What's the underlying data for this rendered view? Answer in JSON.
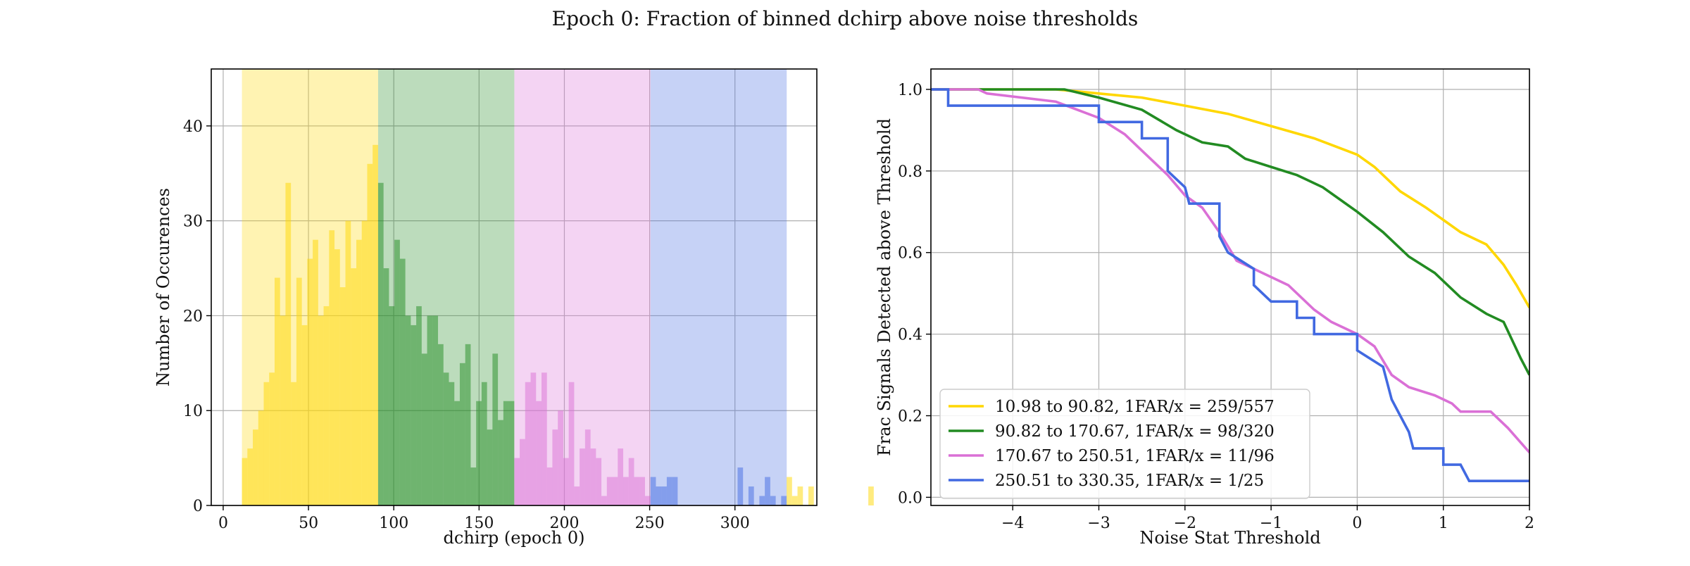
{
  "figure": {
    "title": "Epoch 0: Fraction of binned dchirp above noise thresholds"
  },
  "colors": {
    "yellow": "#FFD700",
    "green": "#228B22",
    "violet": "#DA70D6",
    "blue": "#4169E1",
    "grid": "#b0b0b0"
  },
  "chart_data": [
    {
      "type": "bar",
      "subtype": "histogram",
      "xlabel": "dchirp (epoch 0)",
      "ylabel": "Number of Occurences",
      "xlim": [
        -7,
        348
      ],
      "ylim": [
        0,
        46
      ],
      "xticks": [
        0,
        50,
        100,
        150,
        200,
        250,
        300
      ],
      "yticks": [
        0,
        10,
        20,
        30,
        40
      ],
      "grid": true,
      "shaded_bins": [
        {
          "x0": 10.98,
          "x1": 90.82,
          "color": "yellow"
        },
        {
          "x0": 90.82,
          "x1": 170.67,
          "color": "green"
        },
        {
          "x0": 170.67,
          "x1": 250.51,
          "color": "violet"
        },
        {
          "x0": 250.51,
          "x1": 330.35,
          "color": "blue"
        }
      ],
      "bin_start": 10.98,
      "bin_width": 3.193,
      "counts": [
        5,
        6,
        8,
        10,
        13,
        14,
        24,
        20,
        34,
        13,
        24,
        19,
        26,
        28,
        20,
        21,
        29,
        27,
        23,
        30,
        25,
        28,
        30,
        36,
        38,
        34,
        25,
        21,
        28,
        26,
        20,
        19,
        21,
        16,
        20,
        20,
        17,
        14,
        13,
        11,
        15,
        17,
        4,
        11,
        13,
        8,
        16,
        9,
        11,
        11,
        5,
        7,
        13,
        14,
        11,
        14,
        4,
        8,
        10,
        5,
        13,
        2,
        6,
        8,
        6,
        5,
        1,
        3,
        3,
        6,
        3,
        5,
        3,
        3,
        1,
        3,
        2,
        2,
        3,
        3,
        0,
        0,
        0,
        0,
        0,
        0,
        0,
        0,
        0,
        0,
        0,
        4,
        0,
        2,
        0,
        1,
        3,
        1,
        0,
        1,
        3,
        1,
        2,
        0,
        2,
        0,
        0,
        0,
        0,
        0,
        0,
        0,
        0,
        0,
        0,
        2
      ],
      "series": [
        {
          "name": "",
          "color": "yellow"
        },
        {
          "name": "",
          "color": "green"
        },
        {
          "name": "",
          "color": "violet"
        },
        {
          "name": "",
          "color": "blue"
        }
      ]
    },
    {
      "type": "line",
      "subtype": "step",
      "xlabel": "Noise Stat Threshold",
      "ylabel": "Frac Signals Detected above Threshold",
      "xlim": [
        -4.95,
        2.0
      ],
      "ylim": [
        -0.02,
        1.05
      ],
      "xticks": [
        -4,
        -3,
        -2,
        -1,
        0,
        1,
        2
      ],
      "xtick_labels": [
        "−4",
        "−3",
        "−2",
        "−1",
        "0",
        "1",
        "2"
      ],
      "yticks": [
        0.0,
        0.2,
        0.4,
        0.6,
        0.8,
        1.0
      ],
      "ytick_labels": [
        "0.0",
        "0.2",
        "0.4",
        "0.6",
        "0.8",
        "1.0"
      ],
      "grid": true,
      "legend_position": "lower-left",
      "series": [
        {
          "name": "10.98 to 90.82, 1FAR/x = 259/557",
          "color": "yellow",
          "points": [
            [
              -4.95,
              1.0
            ],
            [
              -3.5,
              1.0
            ],
            [
              -3.0,
              0.99
            ],
            [
              -2.5,
              0.98
            ],
            [
              -2.0,
              0.96
            ],
            [
              -1.5,
              0.94
            ],
            [
              -1.0,
              0.91
            ],
            [
              -0.5,
              0.88
            ],
            [
              0.0,
              0.84
            ],
            [
              0.2,
              0.81
            ],
            [
              0.5,
              0.75
            ],
            [
              0.8,
              0.71
            ],
            [
              1.0,
              0.68
            ],
            [
              1.2,
              0.65
            ],
            [
              1.5,
              0.62
            ],
            [
              1.7,
              0.57
            ],
            [
              1.85,
              0.52
            ],
            [
              2.0,
              0.465
            ]
          ]
        },
        {
          "name": "90.82 to 170.67, 1FAR/x = 98/320",
          "color": "green",
          "points": [
            [
              -4.95,
              1.0
            ],
            [
              -3.4,
              1.0
            ],
            [
              -3.0,
              0.98
            ],
            [
              -2.5,
              0.95
            ],
            [
              -2.1,
              0.9
            ],
            [
              -1.8,
              0.87
            ],
            [
              -1.5,
              0.86
            ],
            [
              -1.3,
              0.83
            ],
            [
              -1.0,
              0.81
            ],
            [
              -0.7,
              0.79
            ],
            [
              -0.4,
              0.76
            ],
            [
              -0.2,
              0.73
            ],
            [
              0.0,
              0.7
            ],
            [
              0.3,
              0.65
            ],
            [
              0.6,
              0.59
            ],
            [
              0.9,
              0.55
            ],
            [
              1.2,
              0.49
            ],
            [
              1.5,
              0.45
            ],
            [
              1.7,
              0.43
            ],
            [
              1.9,
              0.34
            ],
            [
              2.0,
              0.3
            ]
          ]
        },
        {
          "name": "170.67 to 250.51, 1FAR/x = 11/96",
          "color": "violet",
          "points": [
            [
              -4.95,
              1.0
            ],
            [
              -4.4,
              1.0
            ],
            [
              -4.3,
              0.99
            ],
            [
              -3.5,
              0.97
            ],
            [
              -3.0,
              0.93
            ],
            [
              -2.7,
              0.89
            ],
            [
              -2.5,
              0.85
            ],
            [
              -2.2,
              0.79
            ],
            [
              -2.0,
              0.74
            ],
            [
              -1.8,
              0.71
            ],
            [
              -1.6,
              0.65
            ],
            [
              -1.4,
              0.58
            ],
            [
              -1.1,
              0.55
            ],
            [
              -0.8,
              0.52
            ],
            [
              -0.5,
              0.46
            ],
            [
              -0.3,
              0.43
            ],
            [
              0.0,
              0.4
            ],
            [
              0.2,
              0.37
            ],
            [
              0.4,
              0.3
            ],
            [
              0.6,
              0.27
            ],
            [
              0.9,
              0.25
            ],
            [
              1.1,
              0.23
            ],
            [
              1.2,
              0.21
            ],
            [
              1.55,
              0.21
            ],
            [
              1.75,
              0.17
            ],
            [
              2.0,
              0.11
            ]
          ]
        },
        {
          "name": "250.51 to 330.35, 1FAR/x = 1/25",
          "color": "blue",
          "points": [
            [
              -4.95,
              1.0
            ],
            [
              -4.75,
              1.0
            ],
            [
              -4.75,
              0.96
            ],
            [
              -3.0,
              0.96
            ],
            [
              -3.0,
              0.92
            ],
            [
              -2.5,
              0.92
            ],
            [
              -2.5,
              0.88
            ],
            [
              -2.2,
              0.88
            ],
            [
              -2.2,
              0.8
            ],
            [
              -2.0,
              0.76
            ],
            [
              -1.95,
              0.72
            ],
            [
              -1.6,
              0.72
            ],
            [
              -1.6,
              0.64
            ],
            [
              -1.5,
              0.6
            ],
            [
              -1.2,
              0.56
            ],
            [
              -1.2,
              0.52
            ],
            [
              -1.0,
              0.48
            ],
            [
              -0.7,
              0.48
            ],
            [
              -0.7,
              0.44
            ],
            [
              -0.5,
              0.44
            ],
            [
              -0.5,
              0.4
            ],
            [
              0.0,
              0.4
            ],
            [
              0.0,
              0.36
            ],
            [
              0.3,
              0.32
            ],
            [
              0.4,
              0.24
            ],
            [
              0.5,
              0.2
            ],
            [
              0.6,
              0.16
            ],
            [
              0.65,
              0.12
            ],
            [
              1.0,
              0.12
            ],
            [
              1.0,
              0.08
            ],
            [
              1.2,
              0.08
            ],
            [
              1.3,
              0.04
            ],
            [
              2.0,
              0.04
            ]
          ]
        }
      ]
    }
  ]
}
